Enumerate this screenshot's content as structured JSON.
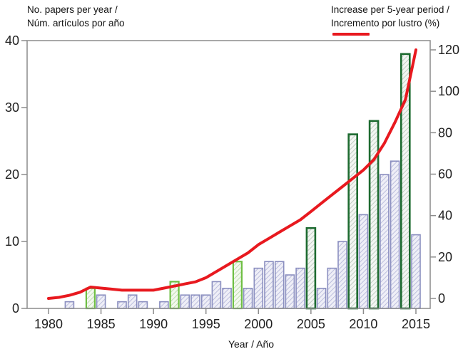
{
  "titles": {
    "left_line1": "No. papers per year /",
    "left_line2": "Núm. artículos por año",
    "right_line1": "Increase per 5-year period /",
    "right_line2": "Incremento por lustro (%)",
    "xlabel": "Year / Año"
  },
  "colors": {
    "line": "#e8191f",
    "bar_border": "#8b8fc0",
    "bar_fill": "#efeff7",
    "bar_hatch": "#b2b5d8",
    "green_light_border": "#6fbf44",
    "green_light_fill": "#f3f8ee",
    "green_light_hatch": "#b5d8a5",
    "green_dark_border": "#1d6b30",
    "green_dark_fill": "#f3f6f3",
    "green_dark_hatch": "#b8c6ba",
    "axis_frame": "#8c8c8c",
    "text": "#1f1f1f",
    "right_axis_text": "#e8191f"
  },
  "chart_data": {
    "type": "combo-bar-line",
    "title": "",
    "x_years": [
      1980,
      1981,
      1982,
      1983,
      1984,
      1985,
      1986,
      1987,
      1988,
      1989,
      1990,
      1991,
      1992,
      1993,
      1994,
      1995,
      1996,
      1997,
      1998,
      1999,
      2000,
      2001,
      2002,
      2003,
      2004,
      2005,
      2006,
      2007,
      2008,
      2009,
      2010,
      2011,
      2012,
      2013,
      2014,
      2015
    ],
    "bar_series": {
      "name": "No. papers per year / Núm. artículos por año",
      "values": [
        0,
        0,
        1,
        0,
        3,
        2,
        0,
        1,
        2,
        1,
        0,
        1,
        4,
        2,
        2,
        2,
        4,
        3,
        7,
        3,
        6,
        7,
        7,
        5,
        6,
        12,
        3,
        6,
        10,
        26,
        14,
        28,
        20,
        22,
        38,
        11
      ]
    },
    "bar_highlight_light_green_years": [
      1984,
      1992,
      1998
    ],
    "bar_highlight_dark_green_years": [
      2005,
      2009,
      2011,
      2014
    ],
    "line_series": {
      "name": "Increase per 5-year period / Incremento por lustro (%)",
      "values": [
        0,
        0.5,
        1.5,
        3,
        5.5,
        5,
        4.5,
        4,
        4,
        4,
        4,
        5,
        6,
        7,
        8,
        10,
        13,
        16,
        19,
        22,
        26,
        29,
        32,
        35,
        38,
        42,
        46,
        50,
        54,
        58,
        62,
        67,
        75,
        85,
        96,
        120
      ]
    },
    "left_axis": {
      "ticks": [
        0,
        10,
        20,
        30,
        40
      ],
      "range": [
        0,
        40
      ]
    },
    "right_axis": {
      "ticks": [
        0,
        20,
        40,
        60,
        80,
        100,
        120
      ],
      "range": [
        0,
        120
      ]
    },
    "x_axis": {
      "ticks": [
        1980,
        1985,
        1990,
        1995,
        2000,
        2005,
        2010,
        2015
      ],
      "range": [
        1980,
        2015
      ]
    },
    "grid": false,
    "legend_position": "top"
  }
}
